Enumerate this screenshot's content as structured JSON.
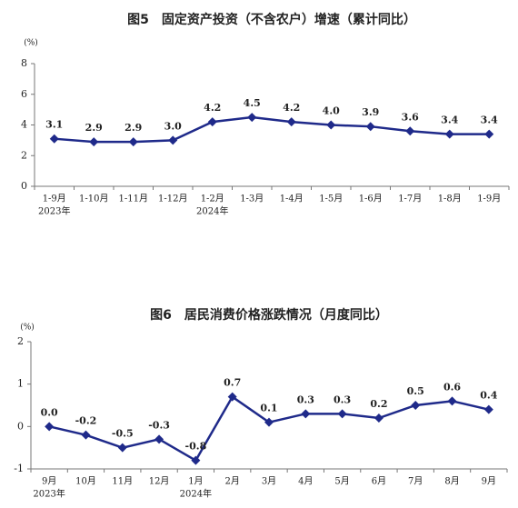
{
  "chart_data": [
    {
      "type": "line",
      "title": "图5　固定资产投资（不含农户）增速（累计同比）",
      "y_unit": "(%)",
      "categories": [
        "1-9月",
        "1-10月",
        "1-11月",
        "1-12月",
        "1-2月",
        "1-3月",
        "1-4月",
        "1-5月",
        "1-6月",
        "1-7月",
        "1-8月",
        "1-9月"
      ],
      "year_labels": [
        "2023年",
        null,
        null,
        null,
        "2024年",
        null,
        null,
        null,
        null,
        null,
        null,
        null
      ],
      "values": [
        3.1,
        2.9,
        2.9,
        3.0,
        4.2,
        4.5,
        4.2,
        4.0,
        3.9,
        3.6,
        3.4,
        3.4
      ],
      "value_labels": [
        "3.1",
        "2.9",
        "2.9",
        "3.0",
        "4.2",
        "4.5",
        "4.2",
        "4.0",
        "3.9",
        "3.6",
        "3.4",
        "3.4"
      ],
      "color": "#1f2a8a",
      "ylim": [
        0,
        8
      ],
      "yticks": [
        0,
        2,
        4,
        6,
        8
      ]
    },
    {
      "type": "line",
      "title": "图6　居民消费价格涨跌情况（月度同比）",
      "y_unit": "(%)",
      "categories": [
        "9月",
        "10月",
        "11月",
        "12月",
        "1月",
        "2月",
        "3月",
        "4月",
        "5月",
        "6月",
        "7月",
        "8月",
        "9月"
      ],
      "year_labels": [
        "2023年",
        null,
        null,
        null,
        "2024年",
        null,
        null,
        null,
        null,
        null,
        null,
        null,
        null
      ],
      "values": [
        0.0,
        -0.2,
        -0.5,
        -0.3,
        -0.8,
        0.7,
        0.1,
        0.3,
        0.3,
        0.2,
        0.5,
        0.6,
        0.4
      ],
      "value_labels": [
        "0.0",
        "-0.2",
        "-0.5",
        "-0.3",
        "-0.8",
        "0.7",
        "0.1",
        "0.3",
        "0.3",
        "0.2",
        "0.5",
        "0.6",
        "0.4"
      ],
      "color": "#1f2a8a",
      "ylim": [
        -1,
        2
      ],
      "yticks": [
        -1,
        0,
        1,
        2
      ]
    }
  ]
}
